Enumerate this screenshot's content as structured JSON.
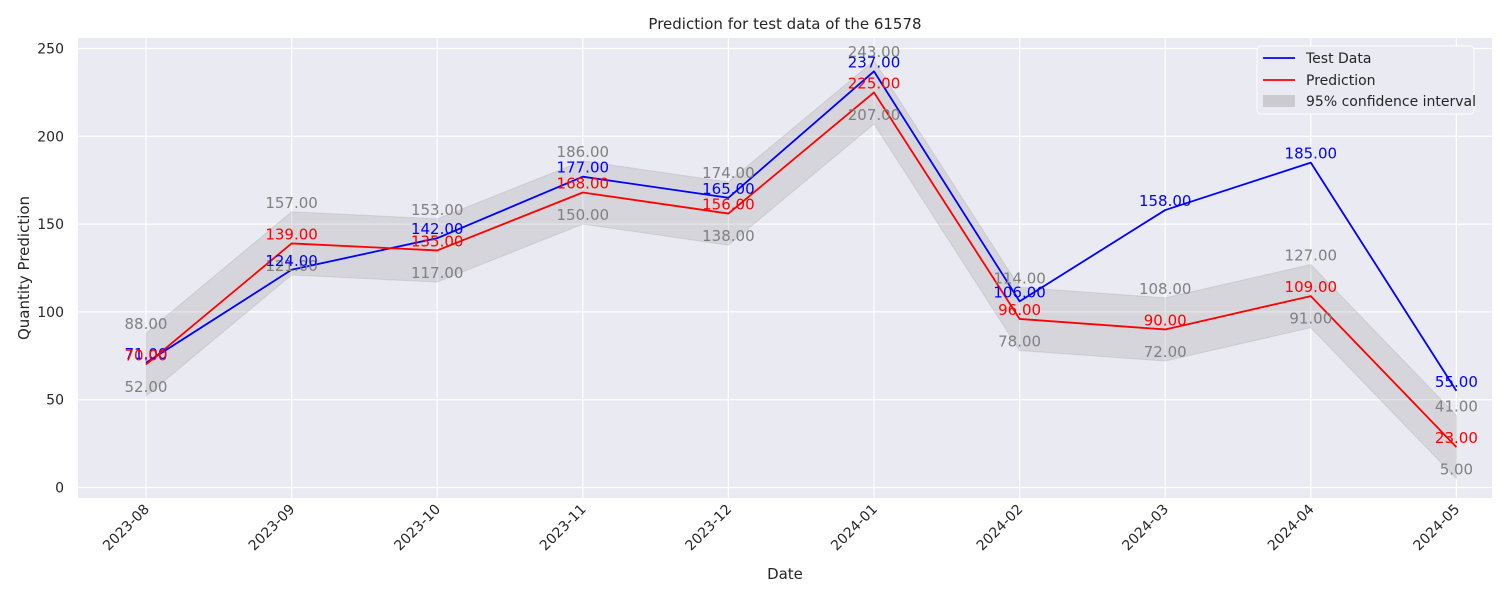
{
  "chart_data": {
    "type": "line",
    "title": "Prediction for test data of the 61578",
    "xlabel": "Date",
    "ylabel": "Quantity Prediction",
    "categories": [
      "2023-08",
      "2023-09",
      "2023-10",
      "2023-11",
      "2023-12",
      "2024-01",
      "2024-02",
      "2024-03",
      "2024-04",
      "2024-05"
    ],
    "ylim": [
      -6,
      256
    ],
    "yticks": [
      0,
      50,
      100,
      150,
      200,
      250
    ],
    "grid": true,
    "legend_position": "top-right",
    "series": [
      {
        "name": "Test Data",
        "color": "#0000ff",
        "values": [
          71,
          124,
          142,
          177,
          165,
          237,
          106,
          158,
          185,
          55
        ],
        "labels": [
          "71.00",
          "124.00",
          "142.00",
          "177.00",
          "165.00",
          "237.00",
          "106.00",
          "158.00",
          "185.00",
          "55.00"
        ]
      },
      {
        "name": "Prediction",
        "color": "#ff0000",
        "values": [
          70,
          139,
          135,
          168,
          156,
          225,
          96,
          90,
          109,
          23
        ],
        "labels": [
          "70.00",
          "139.00",
          "135.00",
          "168.00",
          "156.00",
          "225.00",
          "96.00",
          "90.00",
          "109.00",
          "23.00"
        ]
      }
    ],
    "confidence_interval": {
      "name": "95% confidence interval",
      "color": "#808080",
      "upper": [
        88,
        157,
        153,
        186,
        174,
        243,
        114,
        108,
        127,
        41
      ],
      "lower": [
        52,
        121,
        117,
        150,
        138,
        207,
        78,
        72,
        91,
        5
      ],
      "upper_labels": [
        "88.00",
        "157.00",
        "153.00",
        "186.00",
        "174.00",
        "243.00",
        "114.00",
        "108.00",
        "127.00",
        "41.00"
      ],
      "lower_labels": [
        "52.00",
        "121.00",
        "117.00",
        "150.00",
        "138.00",
        "207.00",
        "78.00",
        "72.00",
        "91.00",
        "5.00"
      ]
    }
  }
}
